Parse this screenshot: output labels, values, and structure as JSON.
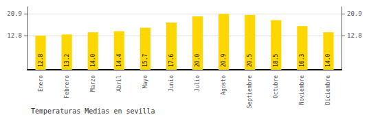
{
  "chart_data": {
    "type": "bar",
    "title": "Temperaturas Medias en sevilla",
    "categories": [
      "Enero",
      "Febrero",
      "Marzo",
      "Abril",
      "Mayo",
      "Junio",
      "Julio",
      "Agosto",
      "Septiembre",
      "Octubre",
      "Noviembre",
      "Diciembre"
    ],
    "values": [
      12.8,
      13.2,
      14.0,
      14.4,
      15.7,
      17.6,
      20.0,
      20.9,
      20.5,
      18.5,
      16.3,
      14.0
    ],
    "value_labels": [
      "12.8",
      "13.2",
      "14.0",
      "14.4",
      "15.7",
      "17.6",
      "20.0",
      "20.9",
      "20.5",
      "18.5",
      "16.3",
      "14.0"
    ],
    "data_labels": true,
    "color": "#FFD700",
    "ylim": [
      0,
      23.5
    ],
    "yticks": [
      12.8,
      20.9
    ],
    "y2lim": [
      0,
      23.5
    ],
    "y2ticks": [
      12.8,
      20.9
    ],
    "grid": true
  }
}
